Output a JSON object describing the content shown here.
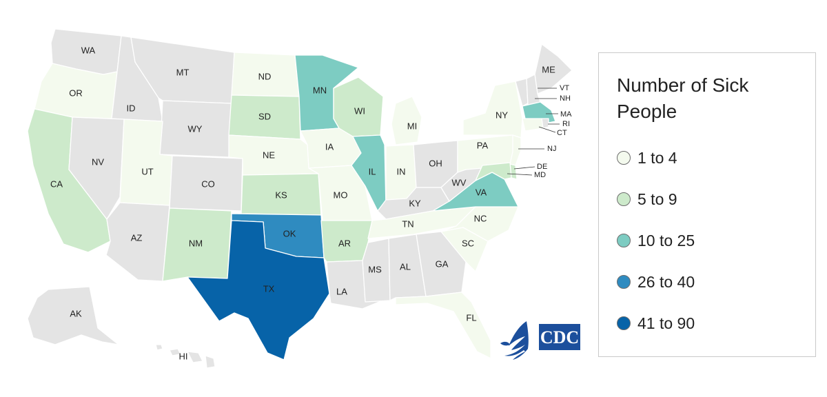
{
  "legend": {
    "title": "Number of Sick People",
    "ranges": [
      {
        "label": "1 to 4",
        "color": "#f4faee"
      },
      {
        "label": "5 to 9",
        "color": "#cdeacb"
      },
      {
        "label": "10 to 25",
        "color": "#7dccc2"
      },
      {
        "label": "26 to 40",
        "color": "#2f8bc0"
      },
      {
        "label": "41 to 90",
        "color": "#0763a8"
      }
    ]
  },
  "no_case_color": "#e4e4e4",
  "logo_text": "CDC",
  "states": {
    "WA": {
      "label": "WA",
      "bin": null
    },
    "OR": {
      "label": "OR",
      "bin": 0
    },
    "CA": {
      "label": "CA",
      "bin": 1
    },
    "ID": {
      "label": "ID",
      "bin": null
    },
    "NV": {
      "label": "NV",
      "bin": null
    },
    "MT": {
      "label": "MT",
      "bin": null
    },
    "WY": {
      "label": "WY",
      "bin": null
    },
    "UT": {
      "label": "UT",
      "bin": 0
    },
    "AZ": {
      "label": "AZ",
      "bin": null
    },
    "CO": {
      "label": "CO",
      "bin": null
    },
    "NM": {
      "label": "NM",
      "bin": 1
    },
    "ND": {
      "label": "ND",
      "bin": 0
    },
    "SD": {
      "label": "SD",
      "bin": 1
    },
    "NE": {
      "label": "NE",
      "bin": 0
    },
    "KS": {
      "label": "KS",
      "bin": 1
    },
    "OK": {
      "label": "OK",
      "bin": 3
    },
    "TX": {
      "label": "TX",
      "bin": 4
    },
    "MN": {
      "label": "MN",
      "bin": 2
    },
    "IA": {
      "label": "IA",
      "bin": 0
    },
    "MO": {
      "label": "MO",
      "bin": 0
    },
    "AR": {
      "label": "AR",
      "bin": 1
    },
    "LA": {
      "label": "LA",
      "bin": null
    },
    "WI": {
      "label": "WI",
      "bin": 1
    },
    "IL": {
      "label": "IL",
      "bin": 2
    },
    "MI": {
      "label": "MI",
      "bin": 0
    },
    "IN": {
      "label": "IN",
      "bin": 0
    },
    "OH": {
      "label": "OH",
      "bin": null
    },
    "KY": {
      "label": "KY",
      "bin": null
    },
    "TN": {
      "label": "TN",
      "bin": 0
    },
    "MS": {
      "label": "MS",
      "bin": null
    },
    "AL": {
      "label": "AL",
      "bin": null
    },
    "GA": {
      "label": "GA",
      "bin": null
    },
    "FL": {
      "label": "FL",
      "bin": 0
    },
    "SC": {
      "label": "SC",
      "bin": 0
    },
    "NC": {
      "label": "NC",
      "bin": 0
    },
    "VA": {
      "label": "VA",
      "bin": 2
    },
    "WV": {
      "label": "WV",
      "bin": null
    },
    "PA": {
      "label": "PA",
      "bin": 0
    },
    "NY": {
      "label": "NY",
      "bin": 0
    },
    "ME": {
      "label": "ME",
      "bin": null
    },
    "VT": {
      "label": "VT",
      "bin": null
    },
    "NH": {
      "label": "NH",
      "bin": null
    },
    "MA": {
      "label": "MA",
      "bin": 2
    },
    "RI": {
      "label": "RI",
      "bin": null
    },
    "CT": {
      "label": "CT",
      "bin": 0
    },
    "NJ": {
      "label": "NJ",
      "bin": 0
    },
    "DE": {
      "label": "DE",
      "bin": 1
    },
    "MD": {
      "label": "MD",
      "bin": 1
    },
    "AK": {
      "label": "AK",
      "bin": null
    },
    "HI": {
      "label": "HI",
      "bin": null
    }
  }
}
